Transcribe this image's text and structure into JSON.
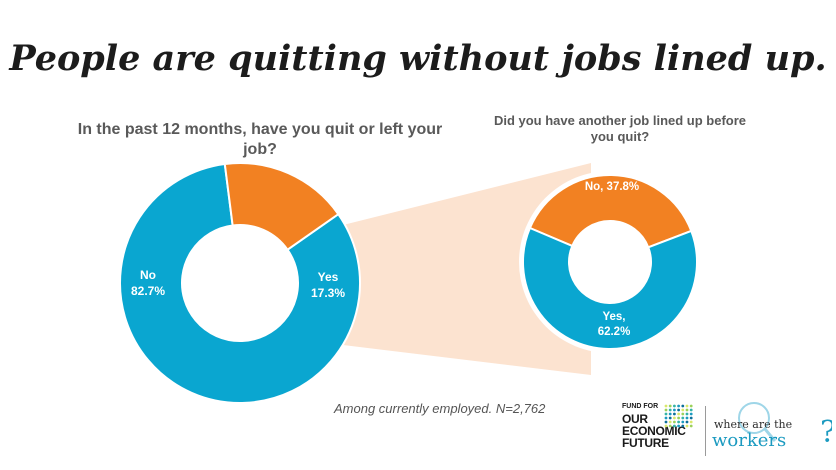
{
  "title": "People are quitting without jobs lined up.",
  "note": "Among currently employed. N=2,762",
  "colors": {
    "blue": "#0aa6d0",
    "orange": "#f28122",
    "connector": "#fce3d0",
    "teal": "#1b9ac0"
  },
  "chart_data": [
    {
      "type": "pie",
      "title": "In the past 12 months, have you quit or left your job?",
      "slices": [
        {
          "label": "No",
          "value": 82.7,
          "display": "82.7%",
          "color": "#0aa6d0"
        },
        {
          "label": "Yes",
          "value": 17.3,
          "display": "17.3%",
          "color": "#f28122"
        }
      ]
    },
    {
      "type": "pie",
      "title": "Did you have another job lined up before you quit?",
      "slices": [
        {
          "label": "No,",
          "value": 37.8,
          "display": "37.8%",
          "color": "#f28122"
        },
        {
          "label": "Yes,",
          "value": 62.2,
          "display": "62.2%",
          "color": "#0aa6d0"
        }
      ]
    }
  ],
  "logos": {
    "fund_small": "FUND FOR",
    "fund_lines": [
      "OUR",
      "ECONOMIC",
      "FUTURE"
    ],
    "where_text": "where are the",
    "workers_text": "workers",
    "question_mark": "?"
  }
}
